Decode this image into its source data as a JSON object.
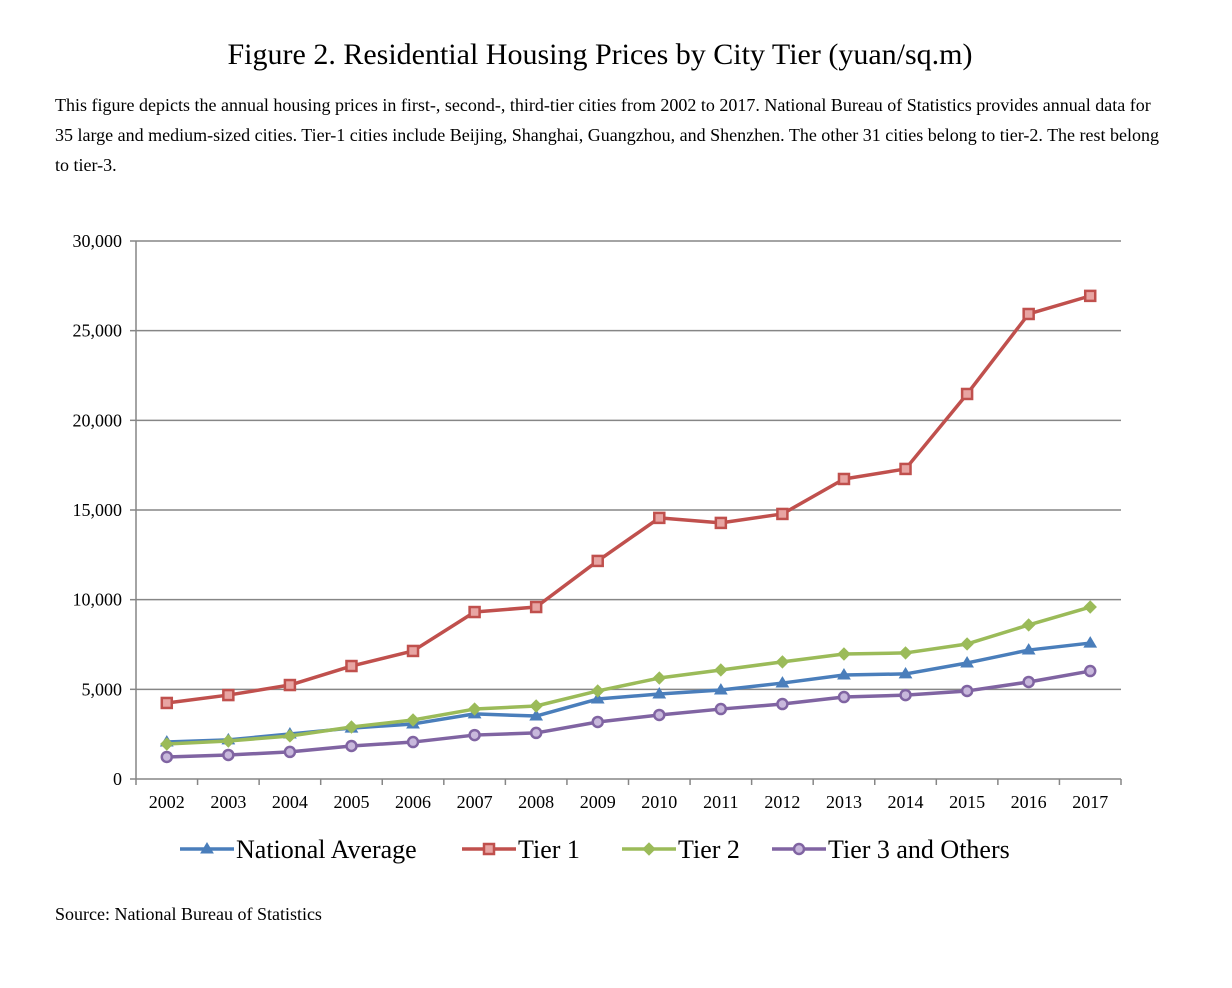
{
  "chart_data": {
    "type": "line",
    "title": "Figure 2. Residential Housing Prices by City Tier (yuan/sq.m)",
    "description": "This figure depicts the annual housing prices in first-, second-, third-tier cities from 2002 to 2017. National Bureau of Statistics provides annual data for 35 large and medium-sized cities. Tier-1 cities include Beijing, Shanghai, Guangzhou, and Shenzhen. The other 31 cities belong to tier-2. The rest belong to tier-3.",
    "source": "Source: National Bureau of Statistics",
    "xlabel": "",
    "ylabel": "",
    "ylim": [
      0,
      30000
    ],
    "yticks": [
      0,
      5000,
      10000,
      15000,
      20000,
      25000,
      30000
    ],
    "ytick_labels": [
      "0",
      "5,000",
      "10,000",
      "15,000",
      "20,000",
      "25,000",
      "30,000"
    ],
    "grid": true,
    "legend_position": "bottom",
    "categories": [
      "2002",
      "2003",
      "2004",
      "2005",
      "2006",
      "2007",
      "2008",
      "2009",
      "2010",
      "2011",
      "2012",
      "2013",
      "2014",
      "2015",
      "2016",
      "2017"
    ],
    "series": [
      {
        "name": "National Average",
        "color": "#4a7ebb",
        "marker": "triangle",
        "values": [
          2060,
          2180,
          2510,
          2840,
          3070,
          3630,
          3510,
          4460,
          4740,
          4960,
          5350,
          5800,
          5860,
          6470,
          7190,
          7580
        ]
      },
      {
        "name": "Tier 1",
        "color": "#c0504d",
        "marker": "square",
        "values": [
          4240,
          4680,
          5240,
          6300,
          7140,
          9310,
          9590,
          12160,
          14560,
          14280,
          14780,
          16730,
          17290,
          21470,
          25930,
          26940
        ]
      },
      {
        "name": "Tier 2",
        "color": "#9bbb59",
        "marker": "diamond",
        "values": [
          1950,
          2120,
          2400,
          2900,
          3290,
          3900,
          4070,
          4910,
          5630,
          6080,
          6530,
          6970,
          7030,
          7530,
          8590,
          9590
        ]
      },
      {
        "name": "Tier 3 and Others",
        "color": "#8064a2",
        "marker": "circle",
        "values": [
          1230,
          1340,
          1510,
          1840,
          2060,
          2450,
          2570,
          3180,
          3570,
          3900,
          4180,
          4570,
          4680,
          4910,
          5410,
          6020
        ]
      }
    ]
  }
}
